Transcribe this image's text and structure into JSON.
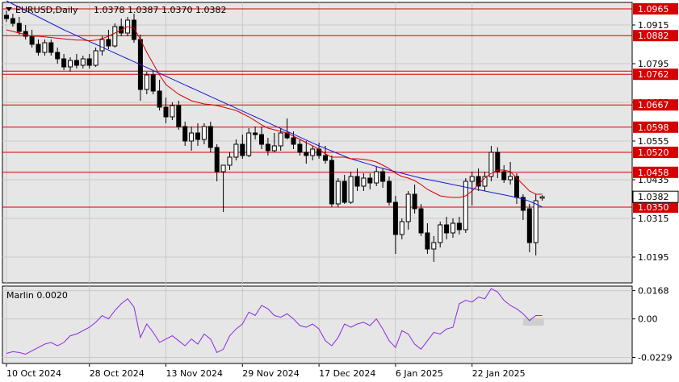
{
  "header": {
    "symbol_label": "EURUSD,Daily",
    "ohlc_label": "1.0378 1.0387 1.0370 1.0382"
  },
  "indicator": {
    "label": "Marlin 0.0020"
  },
  "colors": {
    "background": "#ffffff",
    "plot_bg": "#e6e6e6",
    "grid": "#c9c9c9",
    "candle": "#000000",
    "ma_red": "#d40000",
    "ma_blue": "#1a1ad4",
    "level_line": "#d40000",
    "level_tag": "#d40000",
    "marlin": "#8a2be2"
  },
  "chart_data": [
    {
      "type": "candlestick",
      "title": "EURUSD,Daily",
      "ylim": [
        1.0115,
        1.0985
      ],
      "y_ticks": [
        "1.0915",
        "1.0795",
        "1.0675",
        "1.0555",
        "1.0435",
        "1.0315",
        "1.0195"
      ],
      "x_tick_labels": [
        "10 Oct 2024",
        "28 Oct 2024",
        "13 Nov 2024",
        "29 Nov 2024",
        "17 Dec 2024",
        "6 Jan 2025",
        "22 Jan 2025"
      ],
      "x_tick_index": [
        0,
        13,
        25,
        37,
        49,
        61,
        73
      ],
      "levels": [
        {
          "value": 1.0965,
          "label": "1.0965"
        },
        {
          "value": 1.0882,
          "label": "1.0882"
        },
        {
          "value": 1.0772,
          "label": ""
        },
        {
          "value": 1.0762,
          "label": "1.0762"
        },
        {
          "value": 1.0667,
          "label": "1.0667"
        },
        {
          "value": 1.0598,
          "label": "1.0598"
        },
        {
          "value": 1.052,
          "label": "1.0520"
        },
        {
          "value": 1.0458,
          "label": "1.0458"
        },
        {
          "value": 1.035,
          "label": "1.0350"
        }
      ],
      "current_price": {
        "value": 1.0382,
        "label": "1.0382"
      },
      "ohlc": [
        [
          1.0945,
          1.096,
          1.0925,
          1.0935
        ],
        [
          1.0935,
          1.095,
          1.091,
          1.092
        ],
        [
          1.092,
          1.094,
          1.0885,
          1.0895
        ],
        [
          1.0895,
          1.0915,
          1.087,
          1.088
        ],
        [
          1.088,
          1.09,
          1.0845,
          1.0855
        ],
        [
          1.0855,
          1.087,
          1.082,
          1.083
        ],
        [
          1.083,
          1.087,
          1.082,
          1.086
        ],
        [
          1.086,
          1.087,
          1.082,
          1.083
        ],
        [
          1.083,
          1.0845,
          1.0795,
          1.081
        ],
        [
          1.081,
          1.0825,
          1.0775,
          1.0785
        ],
        [
          1.0785,
          1.0815,
          1.077,
          1.0805
        ],
        [
          1.0805,
          1.0825,
          1.078,
          1.079
        ],
        [
          1.079,
          1.082,
          1.078,
          1.081
        ],
        [
          1.081,
          1.0825,
          1.078,
          1.079
        ],
        [
          1.079,
          1.0845,
          1.0785,
          1.0835
        ],
        [
          1.0835,
          1.088,
          1.082,
          1.087
        ],
        [
          1.087,
          1.09,
          1.084,
          1.085
        ],
        [
          1.085,
          1.092,
          1.0845,
          1.091
        ],
        [
          1.091,
          1.0935,
          1.088,
          1.089
        ],
        [
          1.089,
          1.094,
          1.088,
          1.093
        ],
        [
          1.093,
          1.095,
          1.086,
          1.087
        ],
        [
          1.087,
          1.0885,
          1.068,
          1.0715
        ],
        [
          1.0715,
          1.077,
          1.07,
          1.076
        ],
        [
          1.076,
          1.0775,
          1.07,
          1.071
        ],
        [
          1.071,
          1.0745,
          1.065,
          1.066
        ],
        [
          1.066,
          1.069,
          1.061,
          1.063
        ],
        [
          1.063,
          1.0675,
          1.062,
          1.0665
        ],
        [
          1.0665,
          1.068,
          1.059,
          1.06
        ],
        [
          1.06,
          1.0615,
          1.054,
          1.0555
        ],
        [
          1.0555,
          1.06,
          1.0525,
          1.058
        ],
        [
          1.058,
          1.061,
          1.054,
          1.056
        ],
        [
          1.056,
          1.061,
          1.0545,
          1.06
        ],
        [
          1.06,
          1.0615,
          1.052,
          1.0535
        ],
        [
          1.0535,
          1.0545,
          1.043,
          1.046
        ],
        [
          1.046,
          1.0475,
          1.0335,
          1.048
        ],
        [
          1.048,
          1.052,
          1.0465,
          1.0505
        ],
        [
          1.0505,
          1.056,
          1.0495,
          1.0545
        ],
        [
          1.0545,
          1.0575,
          1.05,
          1.051
        ],
        [
          1.051,
          1.0595,
          1.0505,
          1.058
        ],
        [
          1.058,
          1.06,
          1.056,
          1.0575
        ],
        [
          1.0575,
          1.06,
          1.053,
          1.0545
        ],
        [
          1.0545,
          1.0565,
          1.051,
          1.0525
        ],
        [
          1.0525,
          1.058,
          1.052,
          1.054
        ],
        [
          1.054,
          1.0595,
          1.0525,
          1.058
        ],
        [
          1.058,
          1.0625,
          1.056,
          1.0565
        ],
        [
          1.0565,
          1.0585,
          1.053,
          1.0545
        ],
        [
          1.0545,
          1.056,
          1.051,
          1.052
        ],
        [
          1.052,
          1.0555,
          1.0485,
          1.051
        ],
        [
          1.051,
          1.054,
          1.0495,
          1.053
        ],
        [
          1.053,
          1.055,
          1.05,
          1.051
        ],
        [
          1.051,
          1.054,
          1.0485,
          1.0495
        ],
        [
          1.0495,
          1.051,
          1.035,
          1.036
        ],
        [
          1.036,
          1.044,
          1.035,
          1.043
        ],
        [
          1.043,
          1.045,
          1.036,
          1.0365
        ],
        [
          1.0365,
          1.046,
          1.036,
          1.0445
        ],
        [
          1.0445,
          1.047,
          1.04,
          1.0415
        ],
        [
          1.0415,
          1.0455,
          1.04,
          1.044
        ],
        [
          1.044,
          1.0455,
          1.0405,
          1.0425
        ],
        [
          1.0425,
          1.0475,
          1.0415,
          1.046
        ],
        [
          1.046,
          1.047,
          1.041,
          1.043
        ],
        [
          1.043,
          1.0445,
          1.0355,
          1.0365
        ],
        [
          1.0365,
          1.0385,
          1.0205,
          1.0265
        ],
        [
          1.0265,
          1.0315,
          1.025,
          1.0305
        ],
        [
          1.0305,
          1.04,
          1.028,
          1.039
        ],
        [
          1.039,
          1.042,
          1.033,
          1.0345
        ],
        [
          1.0345,
          1.036,
          1.026,
          1.027
        ],
        [
          1.027,
          1.03,
          1.0205,
          1.022
        ],
        [
          1.022,
          1.026,
          1.018,
          1.024
        ],
        [
          1.024,
          1.0305,
          1.0225,
          1.0295
        ],
        [
          1.0295,
          1.032,
          1.025,
          1.027
        ],
        [
          1.027,
          1.0315,
          1.0255,
          1.03
        ],
        [
          1.03,
          1.032,
          1.0265,
          1.028
        ],
        [
          1.028,
          1.044,
          1.027,
          1.043
        ],
        [
          1.043,
          1.046,
          1.0355,
          1.0445
        ],
        [
          1.0445,
          1.047,
          1.04,
          1.0415
        ],
        [
          1.0415,
          1.046,
          1.04,
          1.0445
        ],
        [
          1.0445,
          1.054,
          1.043,
          1.052
        ],
        [
          1.052,
          1.0535,
          1.044,
          1.046
        ],
        [
          1.046,
          1.048,
          1.0425,
          1.0435
        ],
        [
          1.0435,
          1.049,
          1.042,
          1.0445
        ],
        [
          1.0445,
          1.0455,
          1.036,
          1.038
        ],
        [
          1.038,
          1.039,
          1.031,
          1.034
        ],
        [
          1.0345,
          1.036,
          1.021,
          1.024
        ],
        [
          1.024,
          1.039,
          1.02,
          1.037
        ],
        [
          1.0378,
          1.0387,
          1.037,
          1.0382
        ]
      ],
      "ma_red": [
        1.09,
        1.0895,
        1.089,
        1.0885,
        1.088,
        1.088,
        1.0878,
        1.0876,
        1.0874,
        1.0872,
        1.087,
        1.0868,
        1.0868,
        1.0866,
        1.0868,
        1.0873,
        1.088,
        1.089,
        1.09,
        1.091,
        1.0905,
        1.087,
        1.083,
        1.0795,
        1.076,
        1.073,
        1.0715,
        1.07,
        1.069,
        1.068,
        1.0675,
        1.067,
        1.0668,
        1.0665,
        1.066,
        1.0655,
        1.065,
        1.064,
        1.063,
        1.0618,
        1.0605,
        1.0595,
        1.059,
        1.0585,
        1.058,
        1.057,
        1.056,
        1.055,
        1.054,
        1.053,
        1.0515,
        1.0505,
        1.0505,
        1.0505,
        1.05,
        1.05,
        1.0498,
        1.0495,
        1.049,
        1.048,
        1.047,
        1.0455,
        1.0445,
        1.044,
        1.0432,
        1.042,
        1.0405,
        1.0395,
        1.0385,
        1.0382,
        1.038,
        1.038,
        1.0385,
        1.04,
        1.042,
        1.044,
        1.0455,
        1.0465,
        1.0465,
        1.046,
        1.044,
        1.042,
        1.04,
        1.039,
        1.039
      ],
      "ma_blue": [
        1.099,
        1.098,
        1.097,
        1.096,
        1.095,
        1.094,
        1.093,
        1.092,
        1.091,
        1.09,
        1.0891,
        1.0882,
        1.0873,
        1.0864,
        1.0855,
        1.0846,
        1.0837,
        1.0828,
        1.0819,
        1.081,
        1.0801,
        1.0792,
        1.0783,
        1.0774,
        1.0765,
        1.0756,
        1.0747,
        1.0738,
        1.0729,
        1.072,
        1.0711,
        1.0702,
        1.0693,
        1.0684,
        1.0675,
        1.0666,
        1.0657,
        1.0648,
        1.0639,
        1.063,
        1.0621,
        1.0612,
        1.0603,
        1.0594,
        1.0585,
        1.0576,
        1.0567,
        1.0558,
        1.0549,
        1.054,
        1.0532,
        1.0524,
        1.0516,
        1.0508,
        1.05,
        1.0494,
        1.0488,
        1.0482,
        1.0476,
        1.047,
        1.0465,
        1.046,
        1.0455,
        1.045,
        1.0445,
        1.044,
        1.0436,
        1.0432,
        1.0428,
        1.0424,
        1.042,
        1.0416,
        1.0412,
        1.0408,
        1.0404,
        1.04,
        1.0396,
        1.0392,
        1.0388,
        1.0384,
        1.038,
        1.0375,
        1.0368,
        1.036,
        1.035
      ]
    },
    {
      "type": "line",
      "title": "Marlin 0.0020",
      "ylim": [
        -0.0265,
        0.0195
      ],
      "y_ticks": [
        "0.0168",
        "0.00",
        "-0.0229"
      ],
      "values": [
        -0.0205,
        -0.0195,
        -0.02,
        -0.021,
        -0.019,
        -0.017,
        -0.015,
        -0.014,
        -0.016,
        -0.014,
        -0.01,
        -0.009,
        -0.007,
        -0.005,
        -0.002,
        0.002,
        0.0,
        0.005,
        0.009,
        0.012,
        0.007,
        -0.011,
        -0.003,
        -0.008,
        -0.014,
        -0.012,
        -0.01,
        -0.013,
        -0.016,
        -0.012,
        -0.015,
        -0.009,
        -0.012,
        -0.02,
        -0.018,
        -0.01,
        -0.006,
        -0.003,
        0.004,
        0.002,
        0.008,
        0.006,
        0.002,
        0.001,
        0.003,
        0.0,
        -0.004,
        -0.005,
        -0.003,
        -0.006,
        -0.013,
        -0.016,
        -0.011,
        -0.003,
        -0.005,
        -0.003,
        -0.002,
        -0.004,
        0.0,
        -0.006,
        -0.013,
        -0.017,
        -0.007,
        -0.009,
        -0.015,
        -0.018,
        -0.013,
        -0.008,
        -0.009,
        -0.006,
        -0.005,
        0.009,
        0.011,
        0.01,
        0.013,
        0.012,
        0.018,
        0.016,
        0.011,
        0.008,
        0.006,
        0.003,
        -0.001,
        0.002,
        0.002
      ]
    }
  ]
}
